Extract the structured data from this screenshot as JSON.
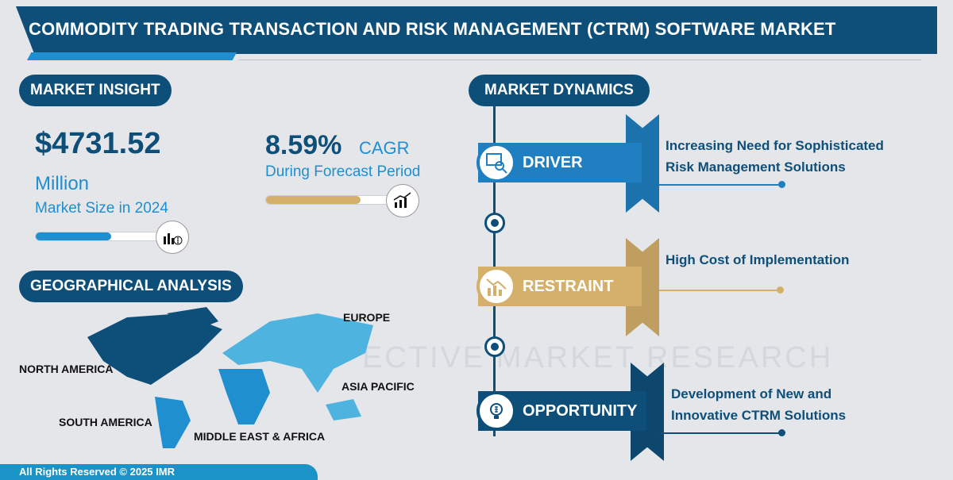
{
  "title": "COMMODITY TRADING TRANSACTION AND RISK MANAGEMENT (CTRM) SOFTWARE MARKET",
  "market_insight": {
    "heading": "MARKET INSIGHT",
    "market_size": "$4731.52",
    "unit": "Million",
    "market_size_label": "Market Size in 2024",
    "market_size_bar_fill": 0.6,
    "cagr": "8.59%",
    "cagr_label": "CAGR",
    "cagr_period": "During Forecast Period",
    "cagr_bar_fill": 0.75
  },
  "geo": {
    "heading": "GEOGRAPHICAL ANALYSIS",
    "regions": [
      "NORTH AMERICA",
      "SOUTH AMERICA",
      "EUROPE",
      "ASIA PACIFIC",
      "MIDDLE EAST & AFRICA"
    ]
  },
  "dynamics": {
    "heading": "MARKET DYNAMICS",
    "items": [
      {
        "label": "DRIVER",
        "text1": "Increasing Need for Sophisticated",
        "text2": "Risk Management Solutions",
        "color": "#1f7fc0",
        "icon": "analytics-search-icon"
      },
      {
        "label": "RESTRAINT",
        "text1": "High Cost of Implementation",
        "text2": "",
        "color": "#d4b06a",
        "icon": "declining-chart-icon"
      },
      {
        "label": "OPPORTUNITY",
        "text1": "Development of New and",
        "text2": "Innovative CTRM Solutions",
        "color": "#0e4f7a",
        "icon": "lightbulb-dollar-icon"
      }
    ]
  },
  "watermark": "ECTIVE MARKET RESEARCH",
  "footer": "All Rights Reserved © 2025 IMR"
}
